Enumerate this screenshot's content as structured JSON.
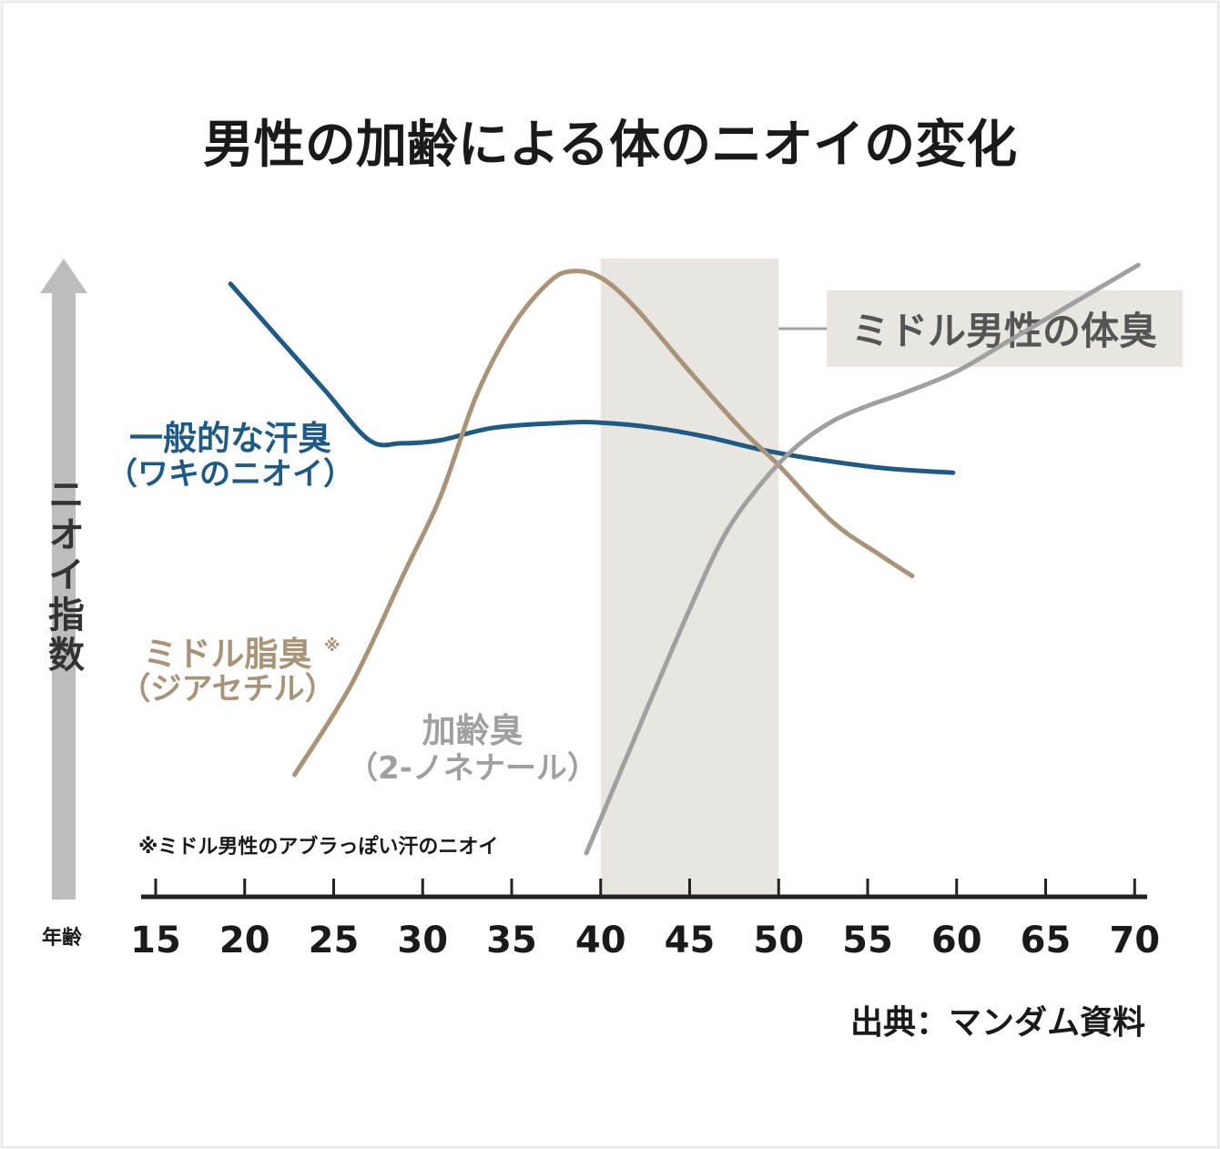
{
  "chart_data": {
    "type": "line",
    "title": "男性の加齢による体のニオイの変化",
    "ylabel": "ニオイ指数",
    "xlabel": "年齢",
    "x_ticks": [
      15,
      20,
      25,
      30,
      35,
      40,
      45,
      50,
      55,
      60,
      65,
      70
    ],
    "xlim": [
      15,
      70
    ],
    "ylim": [
      0,
      100
    ],
    "highlight": {
      "from": 40,
      "to": 50,
      "label": "ミドル男性の体臭",
      "color": "#e9e6e1"
    },
    "series": [
      {
        "name": "一般的な汗臭",
        "name_line2": "（ワキのニオイ）",
        "color": "#1f5a85",
        "points": [
          [
            19.2,
            98
          ],
          [
            22,
            89
          ],
          [
            24.5,
            81
          ],
          [
            27,
            73
          ],
          [
            28.8,
            72.5
          ],
          [
            31,
            73
          ],
          [
            34,
            75
          ],
          [
            38,
            75.8
          ],
          [
            40,
            75.8
          ],
          [
            43,
            75
          ],
          [
            46,
            73.5
          ],
          [
            49,
            71.5
          ],
          [
            52,
            70
          ],
          [
            56,
            68.5
          ],
          [
            59.8,
            67.8
          ]
        ]
      },
      {
        "name": "ミドル脂臭",
        "mark": "※",
        "name_line2": "（ジアセチル）",
        "color": "#a89478",
        "points": [
          [
            22.8,
            19.5
          ],
          [
            26,
            34
          ],
          [
            29,
            52
          ],
          [
            31,
            64
          ],
          [
            33,
            80
          ],
          [
            35,
            91
          ],
          [
            37,
            98
          ],
          [
            38.3,
            100
          ],
          [
            40,
            99
          ],
          [
            42,
            94
          ],
          [
            45,
            84
          ],
          [
            48,
            74.5
          ],
          [
            50,
            69
          ],
          [
            53,
            60
          ],
          [
            55.5,
            55
          ],
          [
            57.5,
            51.3
          ]
        ]
      },
      {
        "name": "加齢臭",
        "name_line2": "（2-ノネナール）",
        "color": "#a0a0a0",
        "points": [
          [
            39.2,
            7
          ],
          [
            42,
            26
          ],
          [
            45,
            46
          ],
          [
            47,
            58
          ],
          [
            49,
            66
          ],
          [
            51,
            72
          ],
          [
            53,
            76
          ],
          [
            55,
            78.5
          ],
          [
            57,
            80.5
          ],
          [
            60,
            84
          ],
          [
            63,
            89
          ],
          [
            66,
            94
          ],
          [
            69,
            99
          ],
          [
            70.2,
            101
          ]
        ]
      }
    ],
    "footnote": "※ミドル男性のアブラっぽい汗のニオイ",
    "source": "出典：マンダム資料",
    "colors": {
      "axis": "#222222",
      "arrow": "#bdbdbd",
      "text": "#1a1a1a"
    }
  }
}
